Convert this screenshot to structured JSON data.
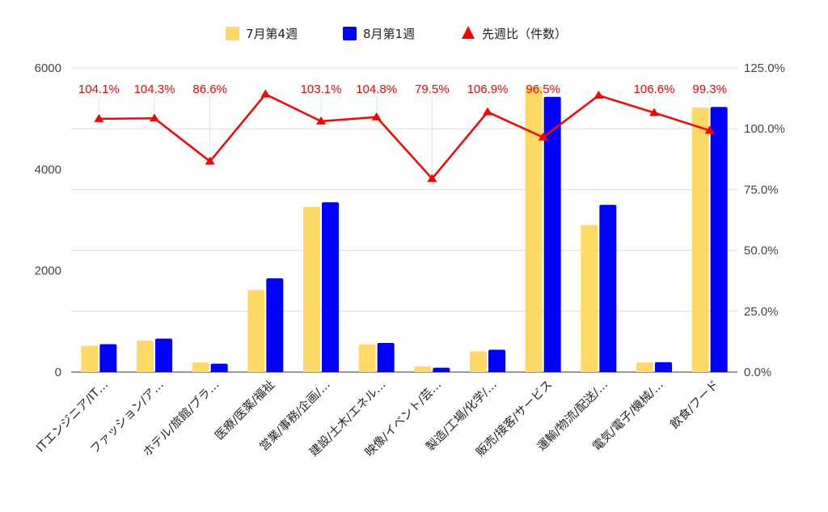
{
  "chart_data": {
    "type": "bar",
    "categories": [
      "ITエンジニア/IT…",
      "ファッション/ア…",
      "ホテル/旅館/ブラ…",
      "医療/医薬/福祉",
      "営業/事務/企画/…",
      "建設/土木/エネル…",
      "映像/イベント/芸…",
      "製造/工場/化学/…",
      "販売/接客/サービス",
      "運輸/物流/配送/…",
      "電気/電子/機械/…",
      "飲食/フード"
    ],
    "series": [
      {
        "name": "7月第4週",
        "kind": "bar",
        "axis": "left",
        "color": "#ffd966",
        "values": [
          520,
          620,
          190,
          1620,
          3260,
          540,
          110,
          410,
          5630,
          2900,
          190,
          5220
        ]
      },
      {
        "name": "8月第1週",
        "kind": "bar",
        "axis": "left",
        "color": "#0000ff",
        "values": [
          550,
          660,
          165,
          1850,
          3350,
          575,
          85,
          440,
          5430,
          3300,
          195,
          5230
        ]
      },
      {
        "name": "先週比（件数）",
        "kind": "line",
        "axis": "right",
        "color": "#ff0000",
        "values": [
          104.1,
          104.3,
          86.6,
          114.2,
          103.1,
          104.8,
          79.5,
          106.9,
          96.5,
          113.7,
          106.6,
          99.3
        ],
        "labels": [
          "104.1%",
          "104.3%",
          "86.6%",
          "",
          "103.1%",
          "104.8%",
          "79.5%",
          "106.9%",
          "96.5%",
          "",
          "106.6%",
          "99.3%"
        ]
      }
    ],
    "y_left": {
      "min": 0,
      "max": 6000,
      "ticks": [
        "0",
        "2000",
        "4000",
        "6000"
      ]
    },
    "y_right": {
      "min": 0,
      "max": 125,
      "ticks": [
        "0.0%",
        "25.0%",
        "50.0%",
        "75.0%",
        "100.0%",
        "125.0%"
      ]
    },
    "grid": true,
    "legend_position": "top"
  }
}
